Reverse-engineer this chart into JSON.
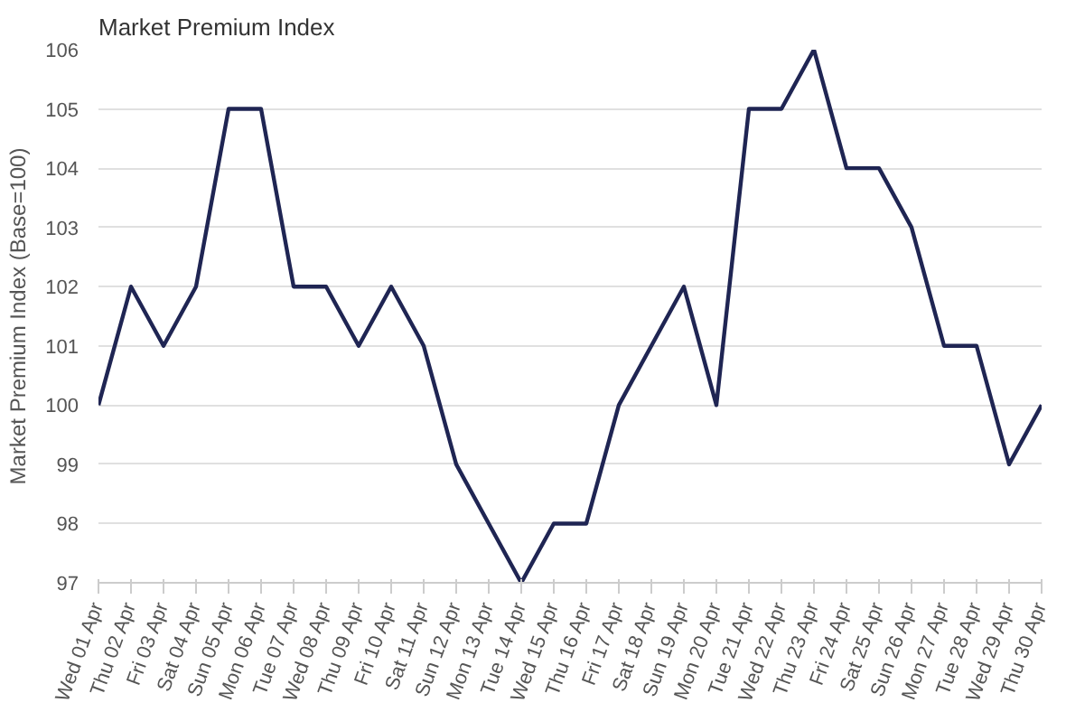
{
  "chart_data": {
    "type": "line",
    "title": "Market Premium Index",
    "ylabel": "Market Premium Index (Base=100)",
    "categories": [
      "Wed 01 Apr",
      "Thu 02 Apr",
      "Fri 03 Apr",
      "Sat 04 Apr",
      "Sun 05 Apr",
      "Mon 06 Apr",
      "Tue 07 Apr",
      "Wed 08 Apr",
      "Thu 09 Apr",
      "Fri 10 Apr",
      "Sat 11 Apr",
      "Sun 12 Apr",
      "Mon 13 Apr",
      "Tue 14 Apr",
      "Wed 15 Apr",
      "Thu 16 Apr",
      "Fri 17 Apr",
      "Sat 18 Apr",
      "Sun 19 Apr",
      "Mon 20 Apr",
      "Tue 21 Apr",
      "Wed 22 Apr",
      "Thu 23 Apr",
      "Fri 24 Apr",
      "Sat 25 Apr",
      "Sun 26 Apr",
      "Mon 27 Apr",
      "Tue 28 Apr",
      "Wed 29 Apr",
      "Thu 30 Apr"
    ],
    "series": [
      {
        "color": "#1f2553",
        "values": [
          100,
          102,
          101,
          102,
          105,
          105,
          102,
          102,
          101,
          102,
          101,
          99,
          98,
          97,
          98,
          98,
          100,
          101,
          102,
          100,
          105,
          105,
          106,
          104,
          104,
          103,
          101,
          101,
          99,
          100
        ]
      }
    ],
    "ylim": [
      97,
      106
    ],
    "yticks": [
      97,
      98,
      99,
      100,
      101,
      102,
      103,
      104,
      105,
      106
    ],
    "grid": "y",
    "marker": "none",
    "line_style": "solid"
  }
}
